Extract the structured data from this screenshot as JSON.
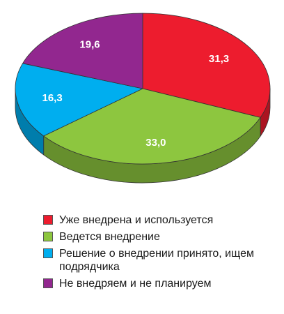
{
  "chart_data": {
    "type": "pie",
    "title": "",
    "slices": [
      {
        "label": "Уже внедрена и используется",
        "value": "31,3",
        "color": "#ed1c2e"
      },
      {
        "label": "Ведется внедрение",
        "value": "33,0",
        "color": "#8dc63f"
      },
      {
        "label": "Решение о внедрении принято, ищем подрядчика",
        "value": "16,3",
        "color": "#00aeef"
      },
      {
        "label": "Не внедряем и не планируем",
        "value": "19,6",
        "color": "#92278f"
      }
    ],
    "legend_position": "bottom"
  }
}
